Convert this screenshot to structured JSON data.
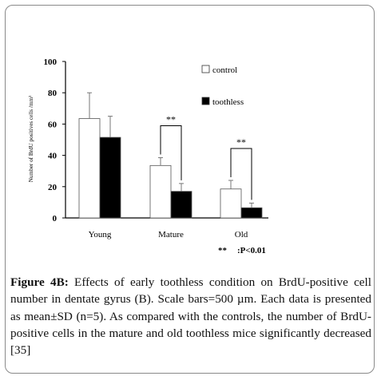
{
  "chart_data": {
    "type": "bar",
    "categories": [
      "Young",
      "Mature",
      "Old"
    ],
    "ylabel": "Number of BrdU positives cells /mm²",
    "ylim": [
      0,
      100
    ],
    "yticks": [
      0,
      20,
      40,
      60,
      80,
      100
    ],
    "series": [
      {
        "name": "control",
        "values": [
          63.5,
          33.5,
          18.5
        ],
        "sd": [
          16.5,
          5.0,
          5.5
        ],
        "fill": "#ffffff"
      },
      {
        "name": "toothless",
        "values": [
          51.5,
          17.0,
          6.5
        ],
        "sd": [
          13.5,
          5.0,
          3.0
        ],
        "fill": "#000000"
      }
    ],
    "significance": [
      {
        "category": "Mature",
        "label": "**"
      },
      {
        "category": "Old",
        "label": "**"
      }
    ],
    "footnote_stars": "**",
    "footnote_text": ":P<0.01",
    "legend_position": "top-right",
    "grid": false
  },
  "caption": {
    "label": "Figure 4B:",
    "text": " Effects of early toothless condition on BrdU-positive cell number in dentate gyrus (B). Scale bars=500 µm. Each data is presented as mean±SD (n=5). As compared with the controls, the number of BrdU-positive cells in the mature and old toothless mice significantly decreased [35]"
  },
  "colors": {
    "border": "#8a8a8a",
    "ink": "#000000"
  }
}
